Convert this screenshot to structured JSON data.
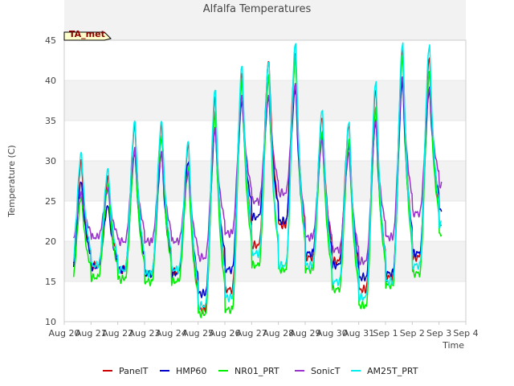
{
  "chart_data": {
    "type": "line",
    "title": "Alfalfa Temperatures",
    "badge": "TA_met",
    "xlabel": "Time",
    "ylabel": "Temperature (C)",
    "ylim": [
      10,
      45
    ],
    "yticks": [
      10,
      15,
      20,
      25,
      30,
      35,
      40,
      45
    ],
    "xlim": [
      0,
      15
    ],
    "xtick_labels": [
      "Aug 20",
      "Aug 21",
      "Aug 22",
      "Aug 23",
      "Aug 24",
      "Aug 25",
      "Aug 26",
      "Aug 27",
      "Aug 28",
      "Aug 29",
      "Aug 30",
      "Aug 31",
      "Sep 1",
      "Sep 2",
      "Sep 3",
      "Sep 4"
    ],
    "grid": "horizontal bands",
    "legend_position": "bottom",
    "x_unit": "days since Aug 20",
    "series": [
      {
        "name": "PanelT",
        "color": "#cc0000",
        "min": [
          15.8,
          17.0,
          16.5,
          16.0,
          16.2,
          11.5,
          14.0,
          19.5,
          22.0,
          18.0,
          17.5,
          14.0,
          15.5,
          18.0,
          22.0
        ],
        "max": [
          30.0,
          28.0,
          34.5,
          34.5,
          32.0,
          38.0,
          41.0,
          42.5,
          43.5,
          35.5,
          34.5,
          39.0,
          44.0,
          43.0
        ]
      },
      {
        "name": "HMP60",
        "color": "#0000cc",
        "min": [
          15.8,
          16.8,
          16.5,
          16.0,
          16.0,
          13.5,
          16.5,
          23.0,
          22.5,
          18.5,
          17.0,
          15.5,
          16.0,
          18.5,
          24.0
        ],
        "max": [
          27.5,
          24.5,
          31.0,
          31.0,
          30.0,
          34.0,
          37.5,
          38.0,
          39.0,
          33.0,
          32.0,
          35.0,
          40.0,
          39.0
        ]
      },
      {
        "name": "NR01_PRT",
        "color": "#00ee00",
        "min": [
          14.3,
          15.5,
          15.3,
          15.0,
          15.0,
          11.0,
          11.5,
          17.0,
          16.5,
          16.5,
          14.0,
          12.0,
          14.5,
          16.0,
          21.0
        ],
        "max": [
          25.5,
          27.0,
          31.5,
          33.0,
          29.0,
          36.0,
          40.0,
          40.5,
          43.0,
          33.5,
          32.5,
          36.5,
          43.0,
          41.0
        ]
      },
      {
        "name": "SonicT",
        "color": "#9933cc",
        "min": [
          19.5,
          20.5,
          20.0,
          20.0,
          20.0,
          18.0,
          21.0,
          25.0,
          26.0,
          20.5,
          19.0,
          17.5,
          20.5,
          23.5,
          27.0
        ],
        "max": [
          26.0,
          26.5,
          31.5,
          31.0,
          28.5,
          34.0,
          38.0,
          38.0,
          39.5,
          32.5,
          31.0,
          35.0,
          40.5,
          39.0
        ]
      },
      {
        "name": "AM25T_PRT",
        "color": "#00eeee",
        "min": [
          16.0,
          17.0,
          16.5,
          16.0,
          16.5,
          12.0,
          13.0,
          18.5,
          17.0,
          17.0,
          15.0,
          13.0,
          15.0,
          17.0,
          22.0
        ],
        "max": [
          31.0,
          29.0,
          35.0,
          35.0,
          32.5,
          39.0,
          42.0,
          42.5,
          44.8,
          36.5,
          35.0,
          40.0,
          44.8,
          44.5
        ]
      }
    ]
  }
}
